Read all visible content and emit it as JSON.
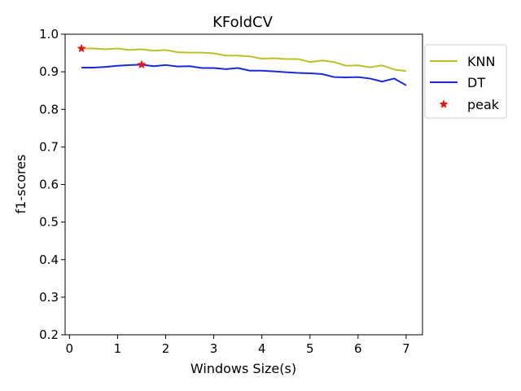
{
  "chart_data": {
    "type": "line",
    "title": "KFoldCV",
    "xlabel": "Windows Size(s)",
    "ylabel": "f1-scores",
    "xlim": [
      -0.09,
      7.34
    ],
    "ylim": [
      0.2,
      1.0
    ],
    "xticks": [
      "0",
      "1",
      "2",
      "3",
      "4",
      "5",
      "6",
      "7"
    ],
    "yticks": [
      "0.2",
      "0.3",
      "0.4",
      "0.5",
      "0.6",
      "0.7",
      "0.8",
      "0.9",
      "1.0"
    ],
    "grid": false,
    "legend_position": "outside-top-right",
    "x": [
      0.25,
      0.5,
      0.75,
      1.0,
      1.25,
      1.5,
      1.75,
      2.0,
      2.25,
      2.5,
      2.75,
      3.0,
      3.25,
      3.5,
      3.75,
      4.0,
      4.25,
      4.5,
      4.75,
      5.0,
      5.25,
      5.5,
      5.75,
      6.0,
      6.25,
      6.5,
      6.75,
      7.0
    ],
    "series": [
      {
        "name": "KNN",
        "color": "#bfbf2a",
        "values": [
          0.962,
          0.962,
          0.96,
          0.962,
          0.958,
          0.96,
          0.956,
          0.958,
          0.952,
          0.951,
          0.951,
          0.949,
          0.943,
          0.943,
          0.941,
          0.935,
          0.936,
          0.934,
          0.934,
          0.926,
          0.93,
          0.926,
          0.916,
          0.917,
          0.912,
          0.917,
          0.906,
          0.902
        ]
      },
      {
        "name": "DT",
        "color": "#1a2bd6",
        "values": [
          0.911,
          0.911,
          0.913,
          0.916,
          0.918,
          0.919,
          0.915,
          0.918,
          0.914,
          0.915,
          0.91,
          0.91,
          0.907,
          0.91,
          0.903,
          0.903,
          0.901,
          0.899,
          0.897,
          0.896,
          0.894,
          0.886,
          0.885,
          0.886,
          0.882,
          0.874,
          0.882,
          0.864
        ]
      }
    ],
    "peaks": {
      "name": "peak",
      "color": "#ee1111",
      "points": [
        {
          "x": 0.25,
          "y": 0.962
        },
        {
          "x": 1.5,
          "y": 0.919
        }
      ]
    }
  }
}
